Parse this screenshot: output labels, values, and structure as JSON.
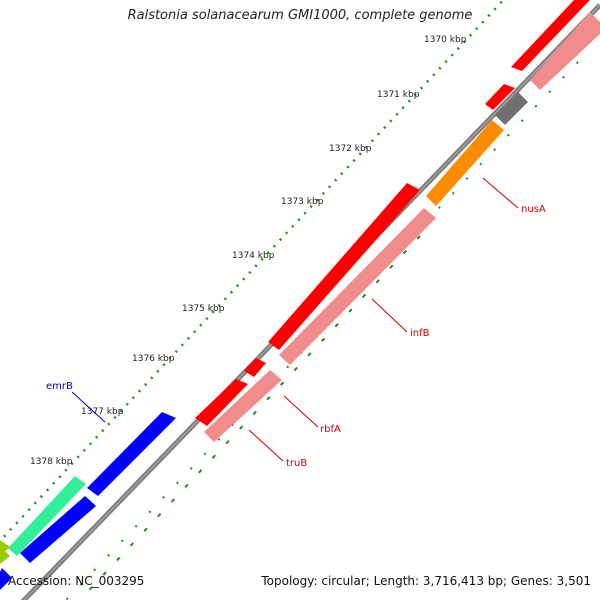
{
  "title": "Ralstonia solanacearum GMI1000, complete genome",
  "accession_text": "Accession: NC_003295",
  "info_text": "Topology: circular; Length: 3,716,413 bp; Genes: 3,501",
  "colors": {
    "backbone": "#808080",
    "cds": "#ff0000",
    "cds_light": "#f08c8c",
    "tick": "#228b22",
    "gene_blue": "#0000ff",
    "gene_orange": "#ff8c00",
    "gene_gray": "#707070",
    "gene_green": "#33ee99",
    "gene_lime": "#99cc00"
  },
  "ruler": [
    {
      "label": "1370 kbp"
    },
    {
      "label": "1371 kbp"
    },
    {
      "label": "1372 kbp"
    },
    {
      "label": "1373 kbp"
    },
    {
      "label": "1374 kbp"
    },
    {
      "label": "1375 kbp"
    },
    {
      "label": "1376 kbp"
    },
    {
      "label": "1377 kbp"
    },
    {
      "label": "1378 kbp"
    }
  ],
  "genes": [
    {
      "name": "nusA",
      "color": "#cc0000"
    },
    {
      "name": "infB",
      "color": "#cc0000"
    },
    {
      "name": "rbfA",
      "color": "#cc0000"
    },
    {
      "name": "truB",
      "color": "#cc0000"
    },
    {
      "name": "emrB",
      "color": "#0000cc"
    }
  ]
}
